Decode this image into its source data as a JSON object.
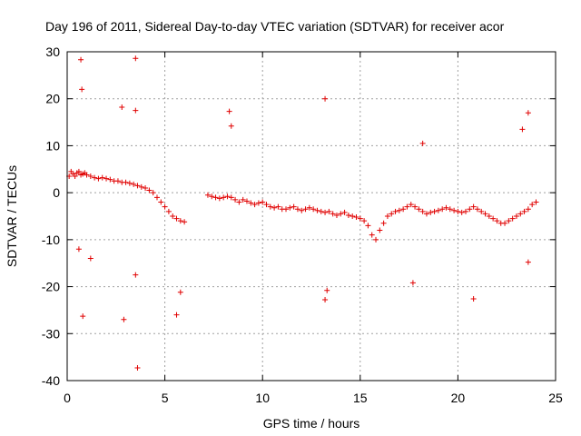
{
  "chart_data": {
    "type": "scatter",
    "title": "Day 196 of 2011, Sidereal Day-to-day VTEC variation (SDTVAR) for receiver acor",
    "xlabel": "GPS time / hours",
    "ylabel": "SDTVAR / TECUs",
    "xlim": [
      0,
      25
    ],
    "ylim": [
      -40,
      30
    ],
    "xticks": [
      "0",
      "5",
      "10",
      "15",
      "20",
      "25"
    ],
    "yticks": [
      "30",
      "20",
      "10",
      "0",
      "-10",
      "-20",
      "-30",
      "-40"
    ],
    "grid": true,
    "marker": "+",
    "color": "#e00000",
    "series": [
      {
        "name": "SDTVAR",
        "x": [
          0.1,
          0.2,
          0.3,
          0.4,
          0.5,
          0.6,
          0.7,
          0.8,
          0.9,
          1.0,
          1.2,
          1.4,
          1.6,
          1.8,
          2.0,
          2.2,
          2.4,
          2.6,
          2.8,
          3.0,
          3.2,
          3.4,
          3.6,
          3.8,
          4.0,
          4.2,
          4.4,
          4.6,
          4.8,
          5.0,
          5.2,
          5.4,
          5.6,
          5.8,
          6.0,
          7.2,
          7.4,
          7.6,
          7.8,
          8.0,
          8.2,
          8.4,
          8.6,
          8.8,
          9.0,
          9.2,
          9.4,
          9.6,
          9.8,
          10.0,
          10.2,
          10.4,
          10.6,
          10.8,
          11.0,
          11.2,
          11.4,
          11.6,
          11.8,
          12.0,
          12.2,
          12.4,
          12.6,
          12.8,
          13.0,
          13.2,
          13.4,
          13.6,
          13.8,
          14.0,
          14.2,
          14.4,
          14.6,
          14.8,
          15.0,
          15.2,
          15.4,
          15.6,
          15.8,
          16.0,
          16.2,
          16.4,
          16.6,
          16.8,
          17.0,
          17.2,
          17.4,
          17.6,
          17.8,
          18.0,
          18.2,
          18.4,
          18.6,
          18.8,
          19.0,
          19.2,
          19.4,
          19.6,
          19.8,
          20.0,
          20.2,
          20.4,
          20.6,
          20.8,
          21.0,
          21.2,
          21.4,
          21.6,
          21.8,
          22.0,
          22.2,
          22.4,
          22.6,
          22.8,
          23.0,
          23.2,
          23.4,
          23.6,
          23.8,
          24.0,
          0.7,
          0.75,
          0.8,
          3.5,
          3.6,
          3.5,
          13.2,
          13.3,
          13.2,
          0.6,
          2.9,
          3.5,
          5.6,
          5.8,
          23.6,
          23.3,
          23.6,
          20.8,
          18.2,
          17.7,
          8.3,
          8.4,
          1.2,
          2.8
        ],
        "y": [
          3.5,
          4.5,
          4.0,
          3.5,
          4.2,
          4.5,
          3.8,
          4.0,
          4.2,
          3.8,
          3.5,
          3.2,
          3.0,
          3.2,
          3.0,
          2.8,
          2.5,
          2.5,
          2.2,
          2.2,
          2.0,
          1.8,
          1.5,
          1.2,
          1.0,
          0.5,
          0.0,
          -1.0,
          -2.0,
          -3.0,
          -4.0,
          -5.0,
          -5.5,
          -6.0,
          -6.2,
          -0.5,
          -0.8,
          -1.0,
          -1.2,
          -1.0,
          -0.8,
          -1.0,
          -1.5,
          -2.0,
          -1.5,
          -1.8,
          -2.2,
          -2.5,
          -2.2,
          -2.0,
          -2.5,
          -3.0,
          -3.2,
          -3.0,
          -3.5,
          -3.5,
          -3.2,
          -3.0,
          -3.5,
          -3.8,
          -3.5,
          -3.2,
          -3.5,
          -3.8,
          -4.0,
          -4.2,
          -4.0,
          -4.5,
          -4.8,
          -4.5,
          -4.2,
          -4.8,
          -5.0,
          -5.2,
          -5.5,
          -6.0,
          -7.0,
          -9.0,
          -10.0,
          -8.0,
          -6.5,
          -5.0,
          -4.5,
          -4.0,
          -3.8,
          -3.5,
          -3.0,
          -2.5,
          -3.0,
          -3.5,
          -4.0,
          -4.5,
          -4.2,
          -4.0,
          -3.8,
          -3.5,
          -3.2,
          -3.5,
          -3.8,
          -4.0,
          -4.2,
          -4.0,
          -3.5,
          -3.0,
          -3.5,
          -4.0,
          -4.5,
          -5.0,
          -5.5,
          -6.0,
          -6.5,
          -6.5,
          -6.0,
          -5.5,
          -5.0,
          -4.5,
          -4.0,
          -3.5,
          -2.5,
          -2.0,
          28.3,
          22.0,
          -26.3,
          28.6,
          -37.3,
          17.5,
          20.0,
          -20.8,
          -22.8,
          -12.0,
          -27.0,
          -17.5,
          -26.0,
          -21.2,
          17.0,
          13.5,
          -14.8,
          -22.6,
          10.5,
          -19.2,
          17.3,
          14.2,
          -14.0,
          18.2
        ]
      }
    ]
  }
}
